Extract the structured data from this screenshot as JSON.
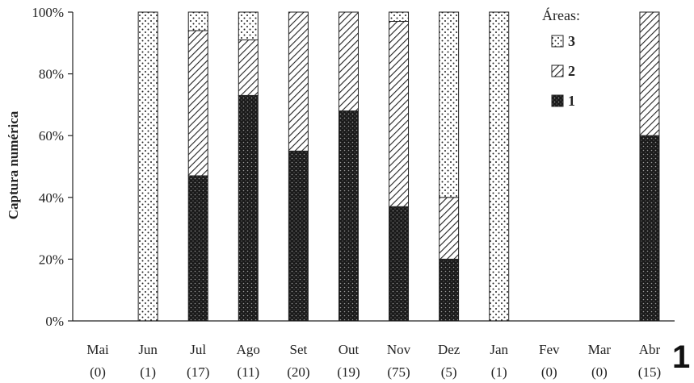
{
  "chart_data": {
    "type": "bar",
    "stacked": true,
    "ylabel": "Captura numérica",
    "ylim": [
      0,
      100
    ],
    "yticks": [
      "0%",
      "20%",
      "40%",
      "60%",
      "80%",
      "100%"
    ],
    "categories": [
      "Mai",
      "Jun",
      "Jul",
      "Ago",
      "Set",
      "Out",
      "Nov",
      "Dez",
      "Jan",
      "Fev",
      "Mar",
      "Abr"
    ],
    "counts": [
      "(0)",
      "(1)",
      "(17)",
      "(11)",
      "(20)",
      "(19)",
      "(75)",
      "(5)",
      "(1)",
      "(0)",
      "(0)",
      "(15)"
    ],
    "legend_title": "Áreas:",
    "legend_position": "top-right",
    "series": [
      {
        "name": "1",
        "pattern": "dense-dots",
        "values": [
          0,
          0,
          47,
          73,
          55,
          68,
          37,
          20,
          0,
          0,
          0,
          60
        ]
      },
      {
        "name": "2",
        "pattern": "diagonal-hatch",
        "values": [
          0,
          0,
          47,
          18,
          45,
          32,
          60,
          20,
          0,
          0,
          0,
          40
        ]
      },
      {
        "name": "3",
        "pattern": "sparse-dots",
        "values": [
          0,
          100,
          6,
          9,
          0,
          0,
          3,
          60,
          100,
          0,
          0,
          0
        ]
      }
    ],
    "grid": false
  },
  "panel_label": "1"
}
